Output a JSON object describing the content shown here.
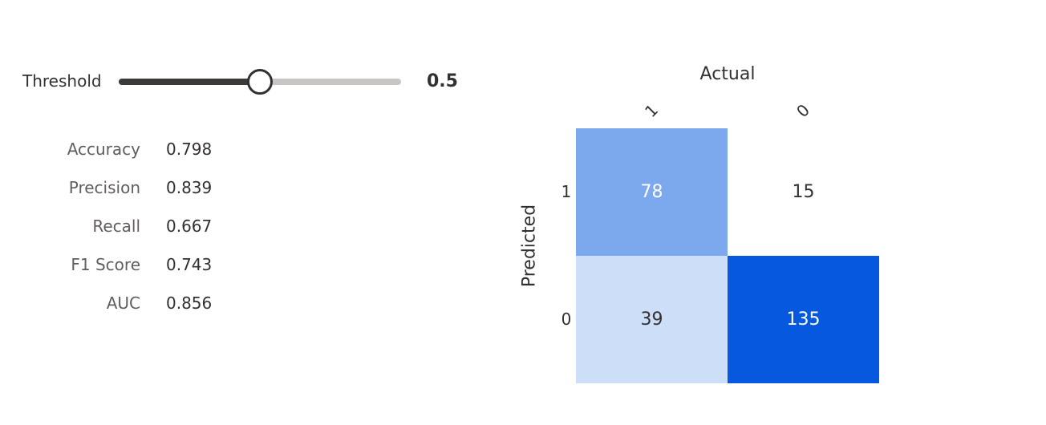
{
  "threshold": {
    "label": "Threshold",
    "value": 0.5,
    "value_text": "0.5",
    "min": 0,
    "max": 1
  },
  "metrics": [
    {
      "label": "Accuracy",
      "value": "0.798"
    },
    {
      "label": "Precision",
      "value": "0.839"
    },
    {
      "label": "Recall",
      "value": "0.667"
    },
    {
      "label": "F1 Score",
      "value": "0.743"
    },
    {
      "label": "AUC",
      "value": "0.856"
    }
  ],
  "chart_data": {
    "type": "heatmap",
    "title": "",
    "xlabel": "Actual",
    "ylabel": "Predicted",
    "x_categories": [
      "1",
      "0"
    ],
    "y_categories": [
      "1",
      "0"
    ],
    "values": [
      [
        78,
        15
      ],
      [
        39,
        135
      ]
    ],
    "colorscale": [
      "#ffffff",
      "#0659de"
    ]
  }
}
